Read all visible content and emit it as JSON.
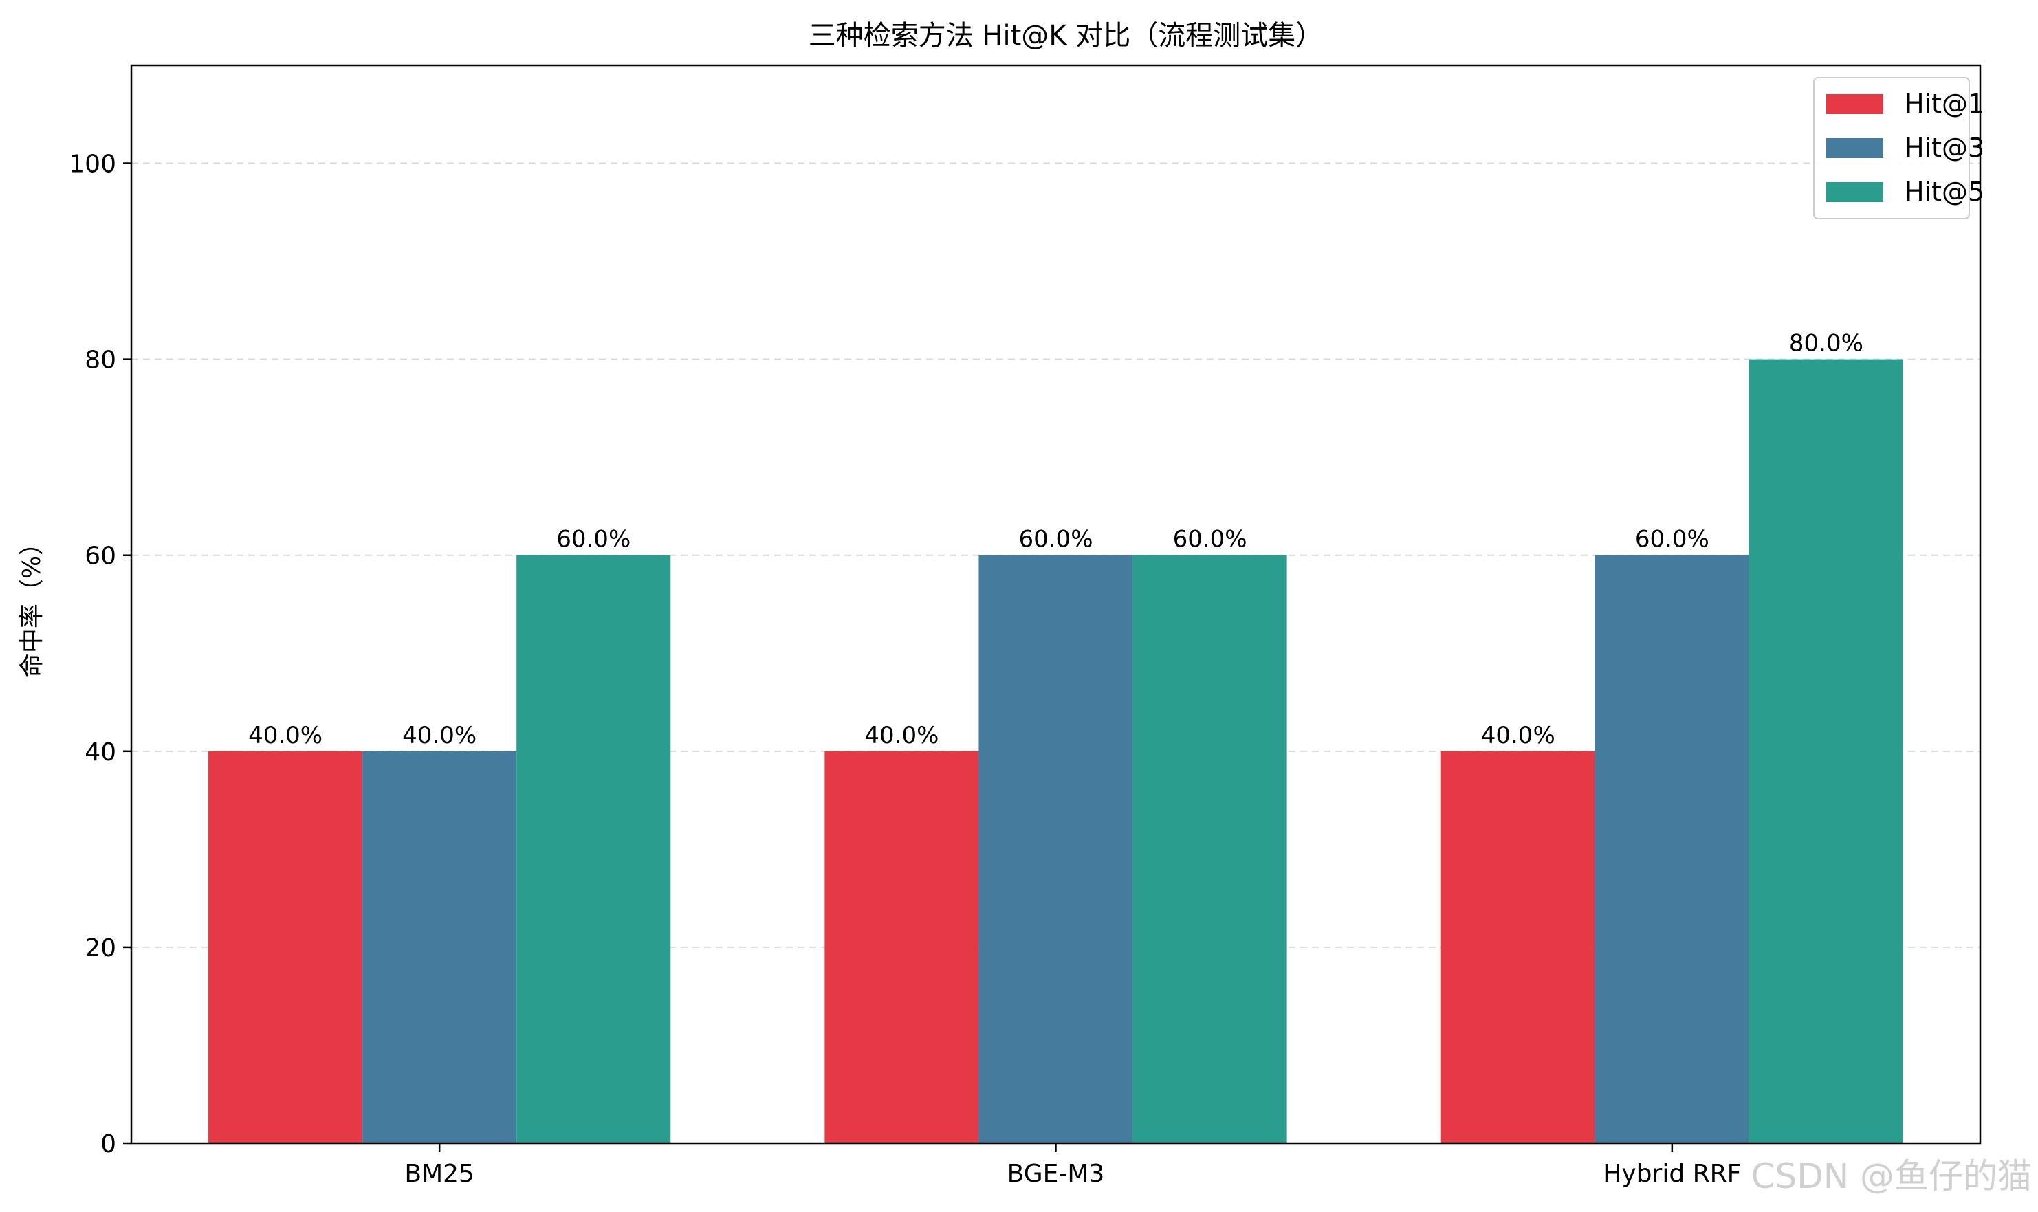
{
  "chart_data": {
    "type": "bar",
    "title": "三种检索方法 Hit@K 对比（流程测试集）",
    "xlabel": "",
    "ylabel": "命中率（%）",
    "categories": [
      "BM25",
      "BGE-M3",
      "Hybrid RRF"
    ],
    "series": [
      {
        "name": "Hit@1",
        "values": [
          40,
          40,
          40
        ],
        "color": "#e63946"
      },
      {
        "name": "Hit@3",
        "values": [
          40,
          60,
          60
        ],
        "color": "#457b9d"
      },
      {
        "name": "Hit@5",
        "values": [
          60,
          60,
          80
        ],
        "color": "#2a9d8f"
      }
    ],
    "data_labels": [
      [
        "40.0%",
        "40.0%",
        "40.0%"
      ],
      [
        "40.0%",
        "60.0%",
        "60.0%"
      ],
      [
        "60.0%",
        "60.0%",
        "80.0%"
      ]
    ],
    "ylim": [
      0,
      110
    ],
    "yticks": [
      "0",
      "20",
      "40",
      "60",
      "80",
      "100"
    ],
    "grid": "y-dashed",
    "legend_position": "top-right"
  },
  "watermark": "CSDN @鱼仔的猫"
}
